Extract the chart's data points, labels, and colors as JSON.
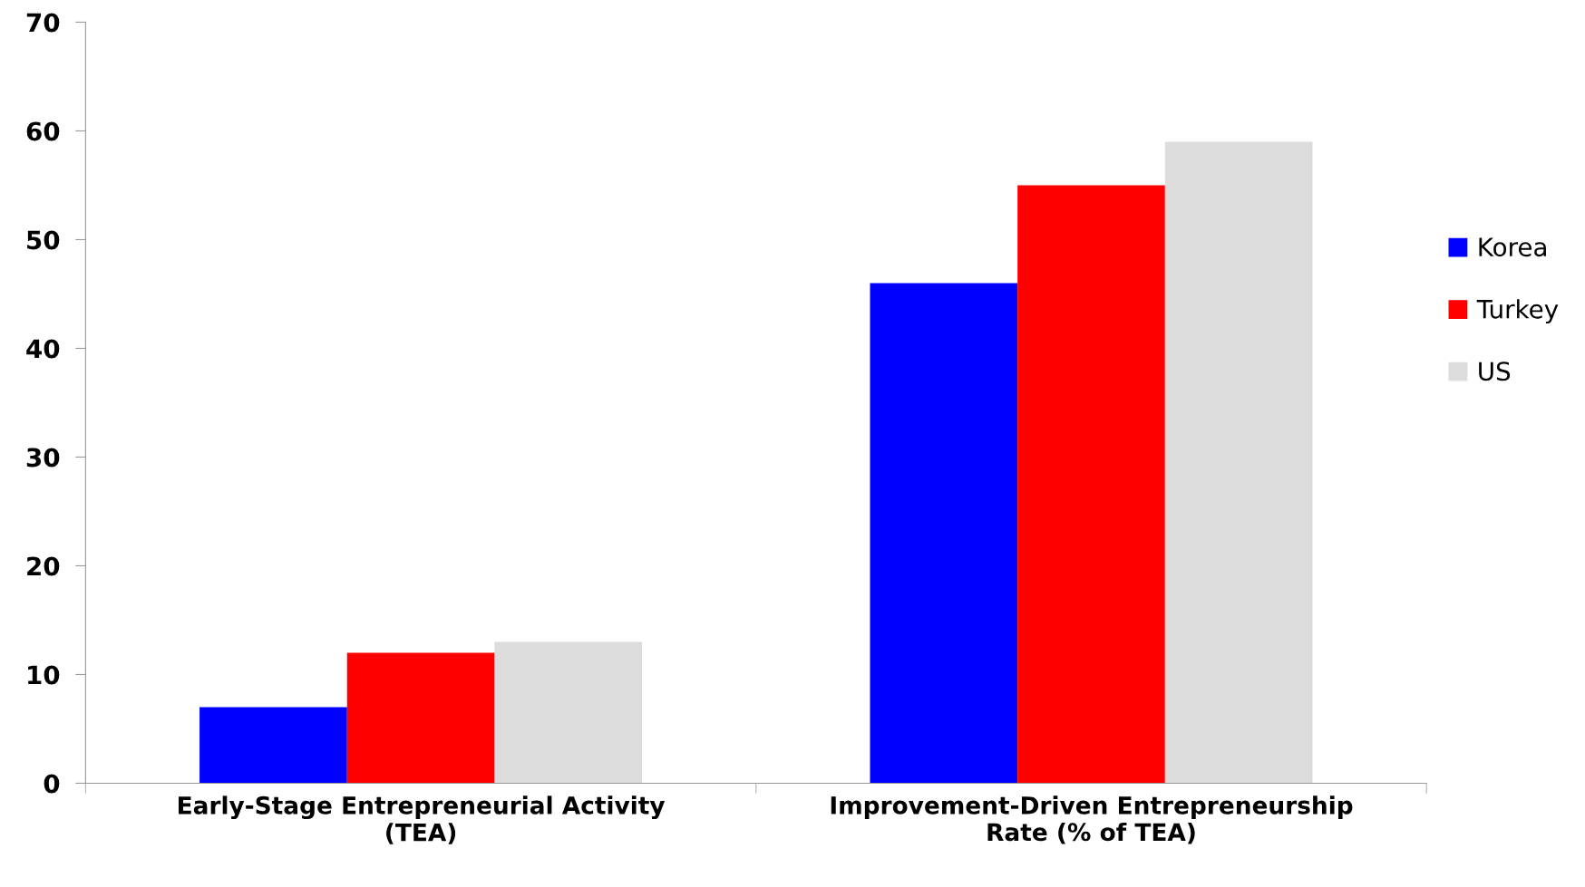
{
  "chart_data": {
    "type": "bar",
    "categories": [
      "Early-Stage Entrepreneurial Activity\n(TEA)",
      "Improvement-Driven Entrepreneurship\nRate (% of TEA)"
    ],
    "series": [
      {
        "name": "Korea",
        "color": "#0000ff",
        "values": [
          7,
          46
        ]
      },
      {
        "name": "Turkey",
        "color": "#ff0000",
        "values": [
          12,
          55
        ]
      },
      {
        "name": "US",
        "color": "#dcdcdc",
        "values": [
          13,
          59
        ]
      }
    ],
    "ylim": [
      0,
      70
    ],
    "yticks": [
      0,
      10,
      20,
      30,
      40,
      50,
      60,
      70
    ],
    "grid": false,
    "legend": "right"
  }
}
